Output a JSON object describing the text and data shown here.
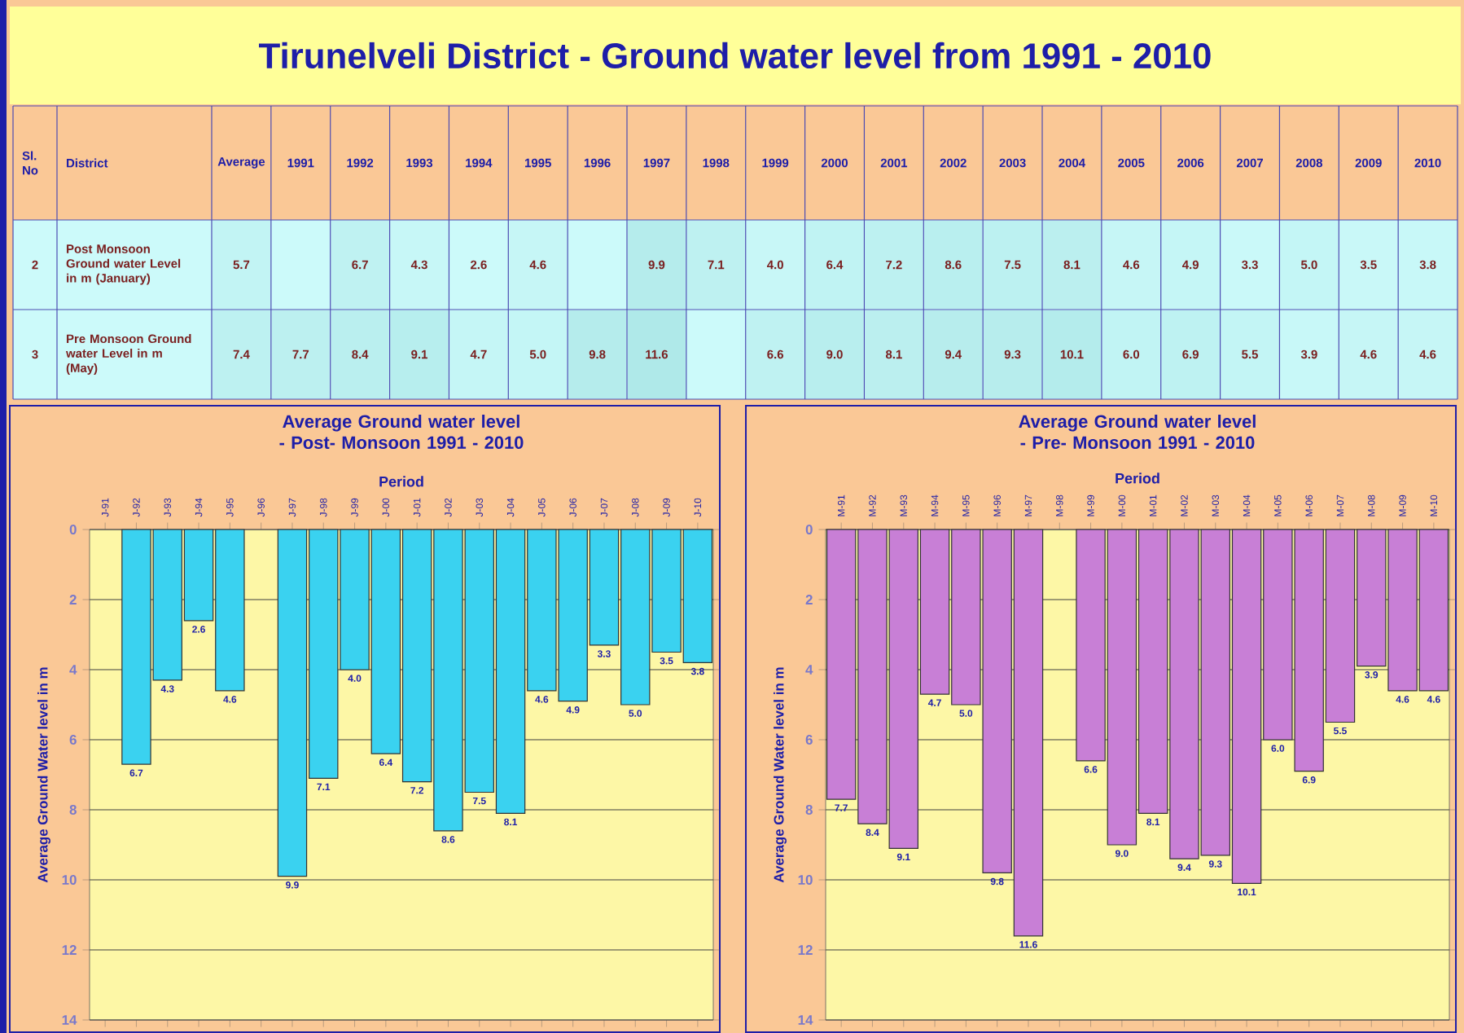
{
  "chart_data": [
    {
      "type": "heatmap",
      "title": "Tirunelveli District - Ground water level from 1991 - 2010",
      "annotations": [
        "Sl. No",
        "District"
      ],
      "categories": [
        "Average",
        "1991",
        "1992",
        "1993",
        "1994",
        "1995",
        "1996",
        "1997",
        "1998",
        "1999",
        "2000",
        "2001",
        "2002",
        "2003",
        "2004",
        "2005",
        "2006",
        "2007",
        "2008",
        "2009",
        "2010"
      ],
      "y_categories": [
        "Post Monsoon Ground water Level in m (January)",
        "Pre Monsoon Ground water Level in m (May)"
      ],
      "y2_categories": [
        "2",
        "3"
      ],
      "cells": [
        [
          5.7,
          null,
          6.7,
          4.3,
          2.6,
          4.6,
          null,
          9.9,
          7.1,
          4.0,
          6.4,
          7.2,
          8.6,
          7.5,
          8.1,
          4.6,
          4.9,
          3.3,
          5.0,
          3.5,
          3.8
        ],
        [
          7.4,
          7.7,
          8.4,
          9.1,
          4.7,
          5.0,
          9.8,
          11.6,
          null,
          6.6,
          9.0,
          8.1,
          9.4,
          9.3,
          10.1,
          6.0,
          6.9,
          5.5,
          3.9,
          4.6,
          4.6
        ]
      ],
      "cell_labels": [
        [
          "5.7",
          null,
          "6.7",
          "4.3",
          "2.6",
          "4.6",
          null,
          "9.9",
          "7.1",
          "4.0",
          "6.4",
          "7.2",
          "8.6",
          "7.5",
          "8.1",
          "4.6",
          "4.9",
          "3.3",
          "5.0",
          "3.5",
          "3.8"
        ],
        [
          "7.4",
          "7.7",
          "8.4",
          "9.1",
          "4.7",
          "5.0",
          "9.8",
          "11.6",
          null,
          "6.6",
          "9.0",
          "8.1",
          "9.4",
          "9.3",
          "10.1",
          "6.0",
          "6.9",
          "5.5",
          "3.9",
          "4.6",
          "4.6"
        ]
      ]
    },
    {
      "type": "bar",
      "title": "Average Ground water level - Post- Monsoon 1991 - 2010",
      "xlabel": "Period",
      "ylabel": "Average Ground Water level in m",
      "categories": [
        "J-91",
        "J-92",
        "J-93",
        "J-94",
        "J-95",
        "J-96",
        "J-97",
        "J-98",
        "J-99",
        "J-00",
        "J-01",
        "J-02",
        "J-03",
        "J-04",
        "J-05",
        "J-06",
        "J-07",
        "J-08",
        "J-09",
        "J-10"
      ],
      "values": [
        null,
        6.7,
        4.3,
        2.6,
        4.6,
        null,
        9.9,
        7.1,
        4.0,
        6.4,
        7.2,
        8.6,
        7.5,
        8.1,
        4.6,
        4.9,
        3.3,
        5.0,
        3.5,
        3.8
      ],
      "value_labels": [
        null,
        "6.7",
        "4.3",
        "2.6",
        "4.6",
        null,
        "9.9",
        "7.1",
        "4.0",
        "6.4",
        "7.2",
        "8.6",
        "7.5",
        "8.1",
        "4.6",
        "4.9",
        "3.3",
        "5.0",
        "3.5",
        "3.8"
      ],
      "color": "#3ad2f0",
      "ylim": [
        14,
        0
      ],
      "yticks": [
        0,
        2,
        4,
        6,
        8,
        10,
        12,
        14
      ],
      "grid": "y"
    },
    {
      "type": "bar",
      "title": "Average Ground water level - Pre- Monsoon 1991 - 2010",
      "xlabel": "Period",
      "ylabel": "Average Ground Water level in m",
      "categories": [
        "M-91",
        "M-92",
        "M-93",
        "M-94",
        "M-95",
        "M-96",
        "M-97",
        "M-98",
        "M-99",
        "M-00",
        "M-01",
        "M-02",
        "M-03",
        "M-04",
        "M-05",
        "M-06",
        "M-07",
        "M-08",
        "M-09",
        "M-10"
      ],
      "values": [
        7.7,
        8.4,
        9.1,
        4.7,
        5.0,
        9.8,
        11.6,
        null,
        6.6,
        9.0,
        8.1,
        9.4,
        9.3,
        10.1,
        6.0,
        6.9,
        5.5,
        3.9,
        4.6,
        4.6
      ],
      "value_labels": [
        "7.7",
        "8.4",
        "9.1",
        "4.7",
        "5.0",
        "9.8",
        "11.6",
        null,
        "6.6",
        "9.0",
        "8.1",
        "9.4",
        "9.3",
        "10.1",
        "6.0",
        "6.9",
        "5.5",
        "3.9",
        "4.6",
        "4.6"
      ],
      "color": "#c87fd6",
      "ylim": [
        14,
        0
      ],
      "yticks": [
        0,
        2,
        4,
        6,
        8,
        10,
        12,
        14
      ],
      "grid": "y"
    }
  ]
}
